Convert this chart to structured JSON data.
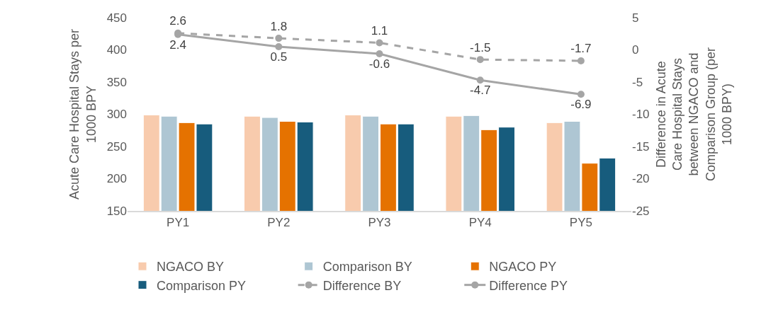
{
  "chart_data": {
    "type": "bar",
    "categories": [
      "PY1",
      "PY2",
      "PY3",
      "PY4",
      "PY5"
    ],
    "ylabel": "Acute Care Hospital Stays per 1000 BPY",
    "y2label": "Difference in Acute Care Hospital Stays between NGACO and Comparison Group (per 1000 BPY)",
    "ylim": [
      150,
      450
    ],
    "yticks": [
      150,
      200,
      250,
      300,
      350,
      400,
      450
    ],
    "y2lim": [
      -25,
      5
    ],
    "y2ticks": [
      -25,
      -20,
      -15,
      -10,
      -5,
      0,
      5
    ],
    "grid": false,
    "legend": "bottom",
    "series": [
      {
        "name": "NGACO BY",
        "color": "#f8cbad",
        "values": [
          299,
          297,
          299,
          297,
          287
        ]
      },
      {
        "name": "Comparison BY",
        "color": "#aec6d3",
        "values": [
          297,
          295,
          297,
          298,
          289
        ]
      },
      {
        "name": "NGACO PY",
        "color": "#e57200",
        "values": [
          287,
          289,
          285,
          276,
          224
        ]
      },
      {
        "name": "Comparison PY",
        "color": "#175c7d",
        "values": [
          285,
          288,
          285,
          280,
          232
        ]
      },
      {
        "name": "Difference BY",
        "type": "line",
        "axis": "y2",
        "color": "#a5a5a5",
        "line_style": "dashed",
        "marker": "circle",
        "data_labels": true,
        "values": [
          2.6,
          1.8,
          1.1,
          -1.5,
          -1.7
        ]
      },
      {
        "name": "Difference PY",
        "type": "line",
        "axis": "y2",
        "color": "#a5a5a5",
        "line_style": "solid",
        "marker": "circle",
        "data_labels": true,
        "values": [
          2.4,
          0.5,
          -0.6,
          -4.7,
          -6.9
        ]
      }
    ]
  }
}
